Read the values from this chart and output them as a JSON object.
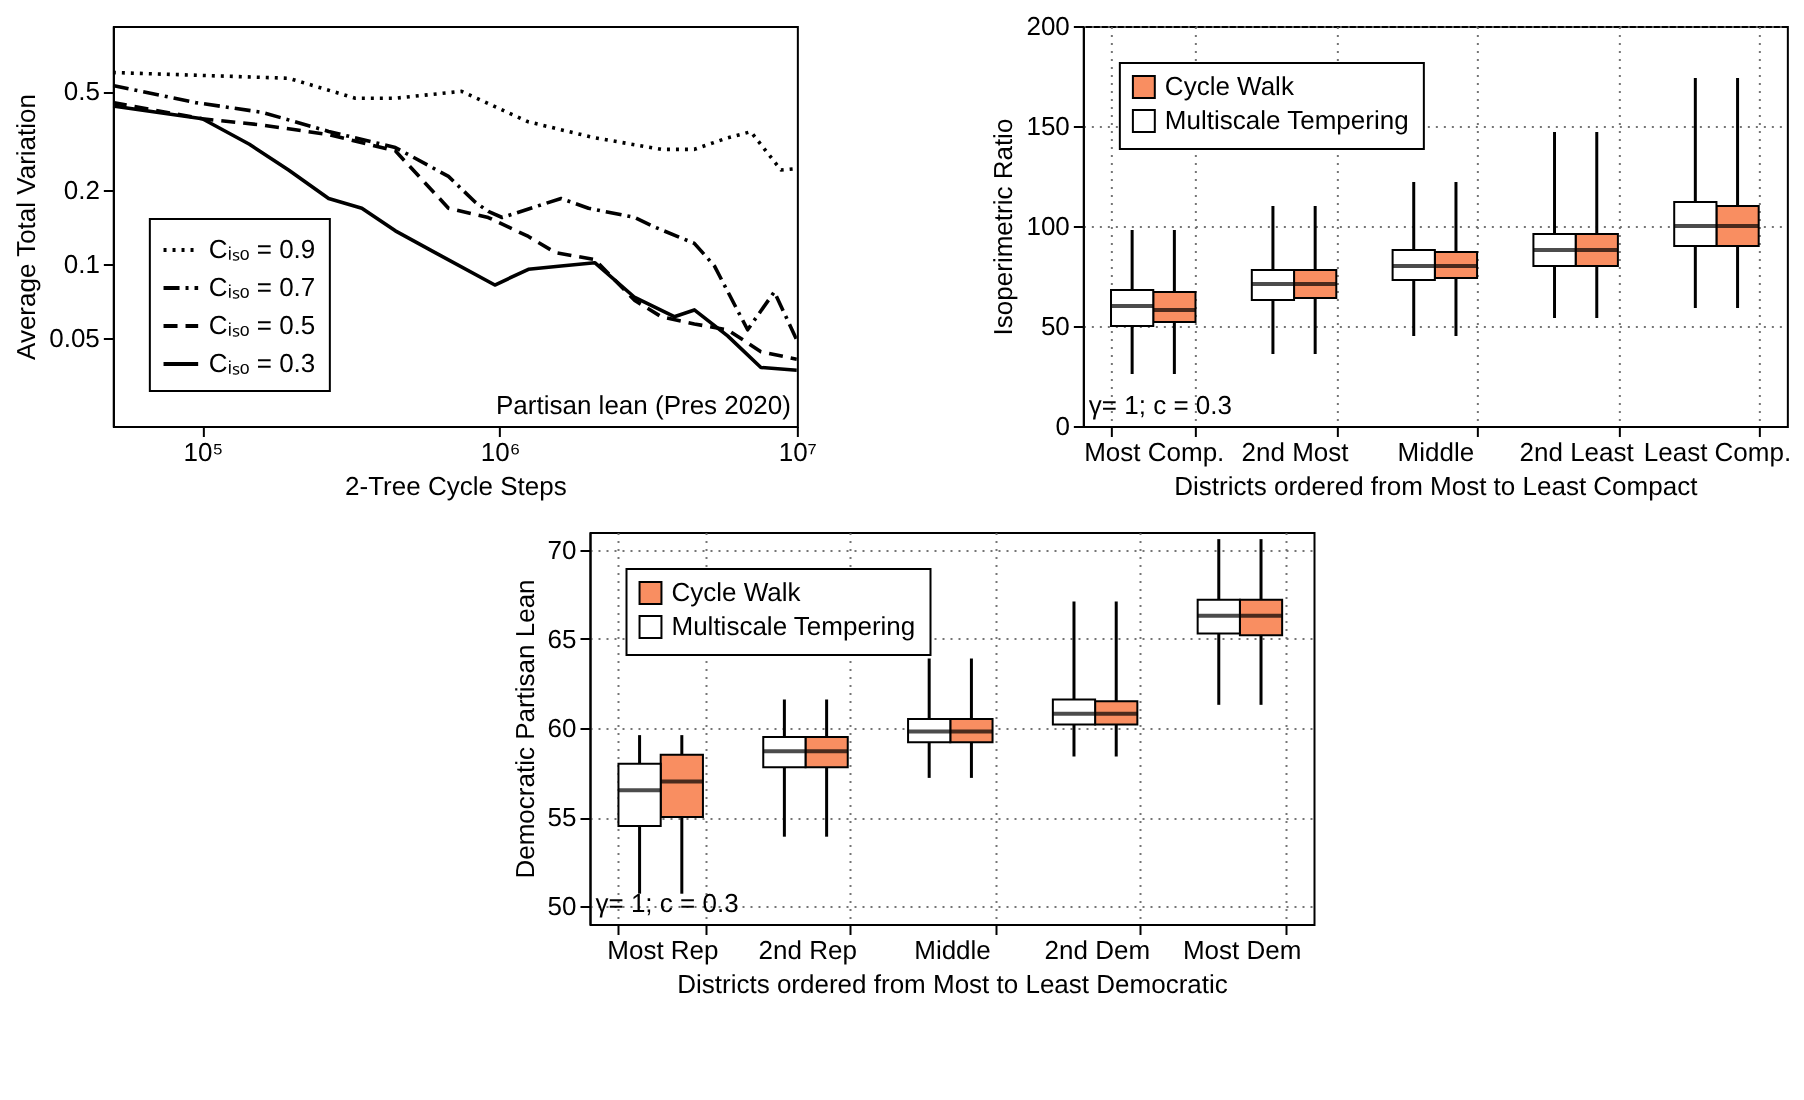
{
  "chart_data": [
    {
      "type": "line",
      "xlabel": "2-Tree Cycle Steps",
      "ylabel": "Average Total Variation",
      "log": "xy",
      "legend": "bottom left",
      "xlim": [
        50000,
        10000000
      ],
      "xticks": [
        {
          "value": 100000,
          "label": "10⁵"
        },
        {
          "value": 1000000,
          "label": "10⁶"
        },
        {
          "value": 10000000,
          "label": "10⁷"
        }
      ],
      "ylim": [
        0.022,
        0.92
      ],
      "yticks": [
        0.05,
        0.1,
        0.2,
        0.5
      ],
      "annotations": [
        "Partisan lean (Pres 2020)"
      ],
      "series": [
        {
          "name": "Cᵢₛₒ = 0.9",
          "color": "#000000",
          "line_style": "dotted",
          "x": [
            50000,
            195000,
            327000,
            446000,
            745000,
            1250000,
            2090000,
            3500000,
            4520000,
            5850000,
            7000000,
            8840000,
            10000000
          ],
          "values": [
            0.596,
            0.565,
            0.469,
            0.469,
            0.5,
            0.376,
            0.324,
            0.291,
            0.291,
            0.324,
            0.343,
            0.24,
            0.243
          ]
        },
        {
          "name": "Cᵢₛₒ = 0.7",
          "color": "#000000",
          "line_style": "dashdot",
          "x": [
            50000,
            95000,
            159000,
            266000,
            446000,
            673000,
            827000,
            916000,
            1020000,
            1610000,
            1990000,
            2850000,
            3320000,
            4520000,
            5280000,
            6830000,
            8400000,
            10000000
          ],
          "values": [
            0.528,
            0.45,
            0.411,
            0.344,
            0.296,
            0.226,
            0.178,
            0.163,
            0.154,
            0.184,
            0.168,
            0.154,
            0.141,
            0.121,
            0.098,
            0.054,
            0.077,
            0.049
          ]
        },
        {
          "name": "Cᵢₛₒ = 0.5",
          "color": "#000000",
          "line_style": "dashed",
          "x": [
            50000,
            100000,
            159000,
            266000,
            446000,
            673000,
            916000,
            1250000,
            1540000,
            2090000,
            2850000,
            3500000,
            4520000,
            5850000,
            7570000,
            10000000
          ],
          "values": [
            0.45,
            0.387,
            0.365,
            0.334,
            0.287,
            0.168,
            0.154,
            0.129,
            0.111,
            0.104,
            0.071,
            0.061,
            0.057,
            0.054,
            0.044,
            0.041
          ]
        },
        {
          "name": "Cᵢₛₒ = 0.3",
          "color": "#000000",
          "line_style": "solid",
          "x": [
            50000,
            100000,
            144000,
            195000,
            266000,
            344000,
            446000,
            607000,
            964000,
            1250000,
            1610000,
            2090000,
            2850000,
            3870000,
            4520000,
            5850000,
            7570000,
            10000000
          ],
          "values": [
            0.436,
            0.387,
            0.305,
            0.24,
            0.184,
            0.168,
            0.136,
            0.111,
            0.082,
            0.095,
            0.098,
            0.101,
            0.073,
            0.061,
            0.065,
            0.051,
            0.038,
            0.037
          ]
        }
      ]
    },
    {
      "type": "box",
      "xlabel": "Districts ordered from Most to Least Compact",
      "ylabel": "Isoperimetric Ratio",
      "grid": true,
      "legend": "top left",
      "categories": [
        "Most Comp.",
        "2nd Most",
        "Middle",
        "2nd Least",
        "Least Comp."
      ],
      "ylim": [
        0,
        200
      ],
      "yticks": [
        0,
        50,
        100,
        150,
        200
      ],
      "annotations": [
        "γ= 1; c = 0.3"
      ],
      "series": [
        {
          "name": "Cycle Walk",
          "color": "#f98e61",
          "boxes": [
            {
              "low": 26,
              "q1": 52,
              "median": 58,
              "q3": 67,
              "high": 98
            },
            {
              "low": 36,
              "q1": 64,
              "median": 71,
              "q3": 78,
              "high": 110
            },
            {
              "low": 45,
              "q1": 74,
              "median": 80,
              "q3": 87,
              "high": 122
            },
            {
              "low": 54,
              "q1": 80,
              "median": 88,
              "q3": 96,
              "high": 147
            },
            {
              "low": 59,
              "q1": 90,
              "median": 100,
              "q3": 110,
              "high": 174
            }
          ]
        },
        {
          "name": "Multiscale Tempering",
          "color": "#ffffff",
          "boxes": [
            {
              "low": 26,
              "q1": 50,
              "median": 60,
              "q3": 68,
              "high": 98
            },
            {
              "low": 36,
              "q1": 63,
              "median": 71,
              "q3": 78,
              "high": 110
            },
            {
              "low": 45,
              "q1": 73,
              "median": 80,
              "q3": 88,
              "high": 122
            },
            {
              "low": 54,
              "q1": 80,
              "median": 88,
              "q3": 96,
              "high": 147
            },
            {
              "low": 59,
              "q1": 90,
              "median": 100,
              "q3": 112,
              "high": 174
            }
          ]
        }
      ]
    },
    {
      "type": "box",
      "xlabel": "Districts ordered from Most to Least Democratic",
      "ylabel": "Democratic Partisan Lean",
      "grid": true,
      "legend": "top left",
      "categories": [
        "Most Rep",
        "2nd Rep",
        "Middle",
        "2nd Dem",
        "Most Dem"
      ],
      "ylim": [
        49,
        71
      ],
      "yticks": [
        50,
        55,
        60,
        65,
        70
      ],
      "annotations": [
        "γ= 1; c = 0.3"
      ],
      "series": [
        {
          "name": "Cycle Walk",
          "color": "#f98e61",
          "boxes": [
            {
              "low": 50.7,
              "q1": 55,
              "median": 57,
              "q3": 58.5,
              "high": 59.6
            },
            {
              "low": 53.9,
              "q1": 57.8,
              "median": 58.7,
              "q3": 59.5,
              "high": 61.6
            },
            {
              "low": 57.2,
              "q1": 59.2,
              "median": 59.8,
              "q3": 60.5,
              "high": 63.9
            },
            {
              "low": 58.4,
              "q1": 60.2,
              "median": 60.8,
              "q3": 61.5,
              "high": 67.1
            },
            {
              "low": 61.3,
              "q1": 65.2,
              "median": 66.3,
              "q3": 67.2,
              "high": 70.6
            }
          ]
        },
        {
          "name": "Multiscale Tempering",
          "color": "#ffffff",
          "boxes": [
            {
              "low": 50.7,
              "q1": 54.5,
              "median": 56.5,
              "q3": 58,
              "high": 59.6
            },
            {
              "low": 53.9,
              "q1": 57.8,
              "median": 58.7,
              "q3": 59.5,
              "high": 61.6
            },
            {
              "low": 57.2,
              "q1": 59.2,
              "median": 59.8,
              "q3": 60.5,
              "high": 63.9
            },
            {
              "low": 58.4,
              "q1": 60.2,
              "median": 60.8,
              "q3": 61.6,
              "high": 67.1
            },
            {
              "low": 61.3,
              "q1": 65.3,
              "median": 66.3,
              "q3": 67.2,
              "high": 70.6
            }
          ]
        }
      ]
    }
  ]
}
